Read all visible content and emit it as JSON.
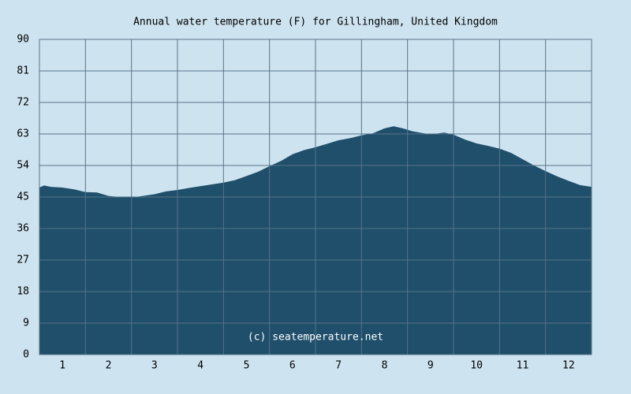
{
  "chart_data": {
    "type": "area",
    "title": "Annual water temperature (F) for Gillingham, United Kingdom",
    "annotation": "(c) seatemperature.net",
    "x": [
      0.5,
      0.6,
      0.75,
      1.0,
      1.25,
      1.5,
      1.75,
      2.0,
      2.25,
      2.5,
      2.75,
      3.0,
      3.25,
      3.5,
      3.75,
      4.0,
      4.25,
      4.5,
      4.75,
      5.0,
      5.25,
      5.5,
      5.75,
      6.0,
      6.25,
      6.5,
      6.75,
      7.0,
      7.25,
      7.5,
      7.75,
      8.0,
      8.2,
      8.4,
      8.6,
      8.8,
      9.0,
      9.3,
      9.5,
      9.75,
      10.0,
      10.25,
      10.5,
      10.75,
      11.0,
      11.25,
      11.5,
      11.75,
      12.0,
      12.25,
      12.5
    ],
    "values": [
      47.7,
      48.3,
      47.9,
      47.7,
      47.2,
      46.4,
      46.3,
      45.3,
      45.0,
      44.9,
      45.3,
      45.8,
      46.6,
      47.0,
      47.6,
      48.1,
      48.6,
      49.1,
      49.8,
      51.0,
      52.2,
      53.8,
      55.3,
      57.2,
      58.4,
      59.2,
      60.2,
      61.2,
      61.8,
      62.6,
      63.2,
      64.6,
      65.2,
      64.6,
      63.8,
      63.3,
      62.9,
      63.4,
      62.8,
      61.4,
      60.3,
      59.6,
      58.8,
      57.6,
      55.8,
      54.0,
      52.4,
      50.9,
      49.6,
      48.4,
      47.9
    ],
    "color": "#1f4f6b",
    "xlim": [
      0.5,
      12.5
    ],
    "xticks": [
      1,
      2,
      3,
      4,
      5,
      6,
      7,
      8,
      9,
      10,
      11,
      12
    ],
    "ylim": [
      0,
      90
    ],
    "yticks": [
      0,
      9,
      18,
      27,
      36,
      45,
      54,
      63,
      72,
      81,
      90
    ],
    "grid": true
  }
}
